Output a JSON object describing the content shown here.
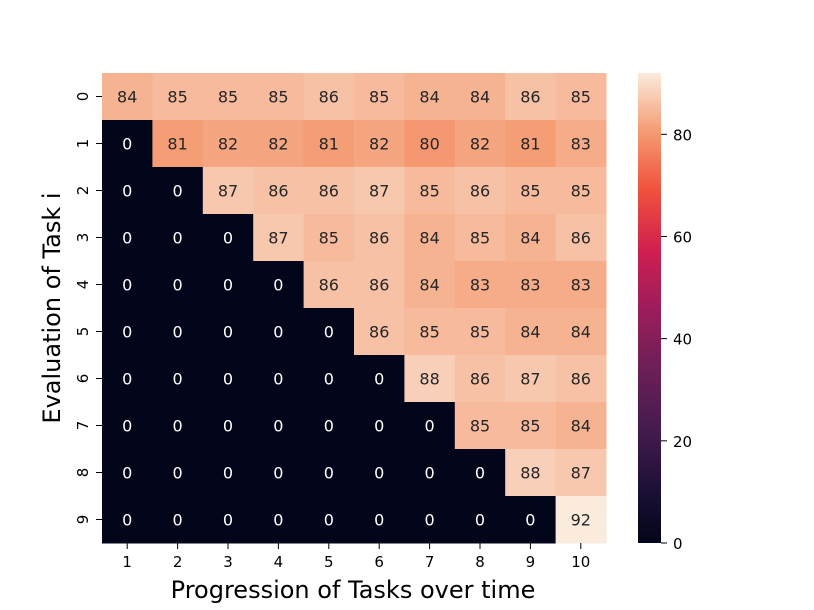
{
  "chart_data": {
    "type": "heatmap",
    "title": "",
    "xlabel": "Progression of Tasks over time",
    "ylabel": "Evaluation of Task i",
    "x_categories": [
      "1",
      "2",
      "3",
      "4",
      "5",
      "6",
      "7",
      "8",
      "9",
      "10"
    ],
    "y_categories": [
      "0",
      "1",
      "2",
      "3",
      "4",
      "5",
      "6",
      "7",
      "8",
      "9"
    ],
    "values": [
      [
        84,
        85,
        85,
        85,
        86,
        85,
        84,
        84,
        86,
        85
      ],
      [
        0,
        81,
        82,
        82,
        81,
        82,
        80,
        82,
        81,
        83
      ],
      [
        0,
        0,
        87,
        86,
        86,
        87,
        85,
        86,
        85,
        85
      ],
      [
        0,
        0,
        0,
        87,
        85,
        86,
        84,
        85,
        84,
        86
      ],
      [
        0,
        0,
        0,
        0,
        86,
        86,
        84,
        83,
        83,
        83
      ],
      [
        0,
        0,
        0,
        0,
        0,
        86,
        85,
        85,
        84,
        84
      ],
      [
        0,
        0,
        0,
        0,
        0,
        0,
        88,
        86,
        87,
        86
      ],
      [
        0,
        0,
        0,
        0,
        0,
        0,
        0,
        85,
        85,
        84
      ],
      [
        0,
        0,
        0,
        0,
        0,
        0,
        0,
        0,
        88,
        87
      ],
      [
        0,
        0,
        0,
        0,
        0,
        0,
        0,
        0,
        0,
        92
      ]
    ],
    "colorbar": {
      "min": 0,
      "max": 92,
      "ticks": [
        "0",
        "20",
        "40",
        "60",
        "80"
      ]
    },
    "colormap": "rocket",
    "annotations": true,
    "grid": false
  }
}
